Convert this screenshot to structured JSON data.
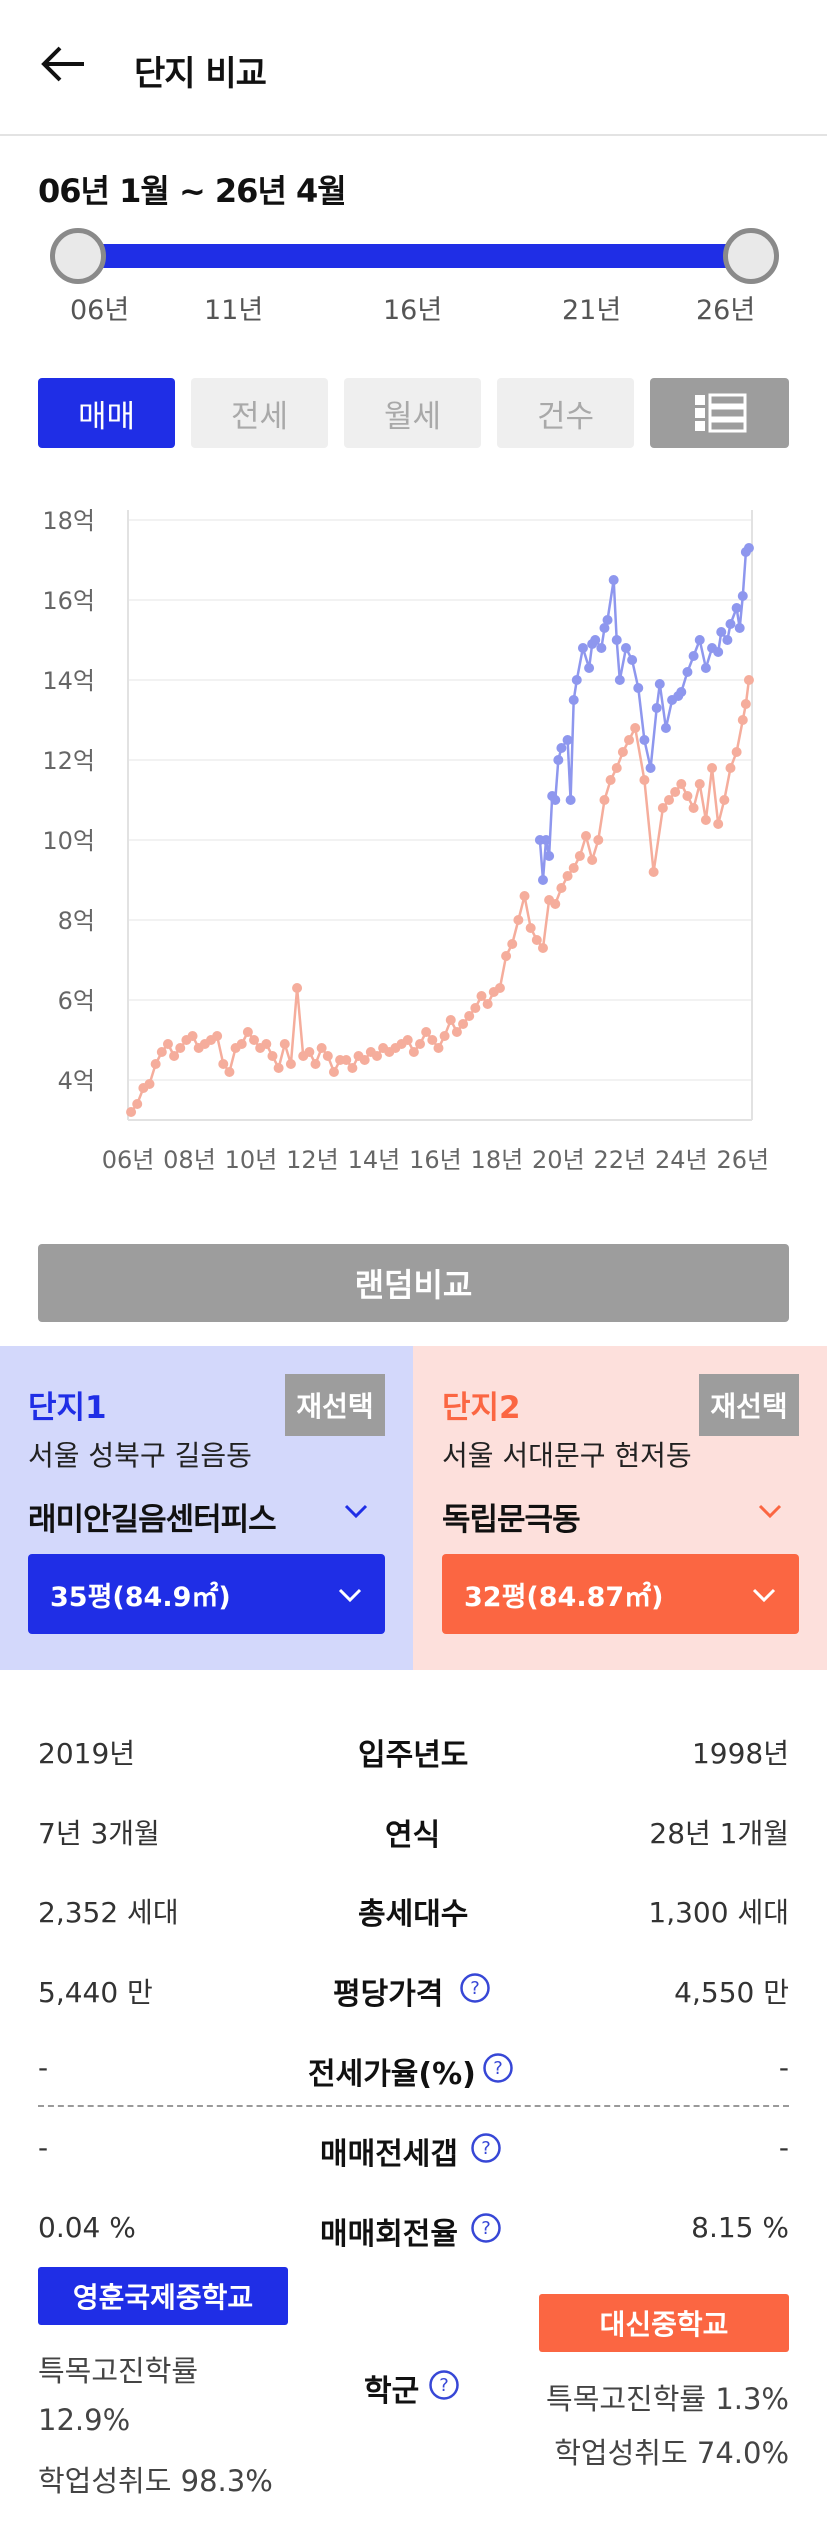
{
  "header": {
    "title": "단지 비교",
    "back_icon": "arrow-left-icon"
  },
  "range": {
    "label": "06년 1월 ~ 26년 4월",
    "ticks": [
      "06년",
      "11년",
      "16년",
      "21년",
      "26년"
    ],
    "start_fraction": 0,
    "end_fraction": 1
  },
  "tabs": [
    {
      "label": "매매",
      "active": true
    },
    {
      "label": "전세",
      "active": false
    },
    {
      "label": "월세",
      "active": false
    },
    {
      "label": "건수",
      "active": false
    }
  ],
  "list_icon": "list-view-icon",
  "colors": {
    "accent": "#1f2ee6",
    "complex1": "#8e97ee",
    "complex2": "#f5ad9c",
    "complex2_accent": "#fb6642"
  },
  "chart_data": {
    "type": "line",
    "x_ticks": [
      "06년",
      "08년",
      "10년",
      "12년",
      "14년",
      "16년",
      "18년",
      "20년",
      "22년",
      "24년",
      "26년"
    ],
    "y_ticks": [
      "4억",
      "6억",
      "8억",
      "10억",
      "12억",
      "14억",
      "16억",
      "18억"
    ],
    "xlim": [
      2006.0,
      2026.3
    ],
    "ylim": [
      3.0,
      18.5
    ],
    "grid": true,
    "series": [
      {
        "color": "#8e97ee",
        "x": [
          2019.4,
          2019.5,
          2019.6,
          2019.7,
          2019.8,
          2019.9,
          2020.0,
          2020.1,
          2020.3,
          2020.4,
          2020.5,
          2020.6,
          2020.8,
          2021.0,
          2021.1,
          2021.2,
          2021.4,
          2021.5,
          2021.6,
          2021.8,
          2021.9,
          2022.0,
          2022.2,
          2022.4,
          2022.6,
          2022.8,
          2023.0,
          2023.2,
          2023.3,
          2023.5,
          2023.7,
          2023.9,
          2024.0,
          2024.2,
          2024.4,
          2024.6,
          2024.8,
          2025.0,
          2025.2,
          2025.3,
          2025.5,
          2025.6,
          2025.8,
          2025.9,
          2026.0,
          2026.1,
          2026.2
        ],
        "y": [
          10.0,
          9.0,
          10.0,
          9.6,
          11.1,
          11.0,
          12.0,
          12.3,
          12.5,
          11.0,
          13.5,
          14.0,
          14.8,
          14.3,
          14.9,
          15.0,
          14.8,
          15.3,
          15.5,
          16.5,
          15.0,
          14.0,
          14.8,
          14.5,
          13.8,
          12.5,
          11.8,
          13.3,
          13.9,
          12.8,
          13.5,
          13.6,
          13.7,
          14.2,
          14.6,
          15.0,
          14.3,
          14.8,
          14.7,
          15.2,
          15.0,
          15.4,
          15.8,
          15.3,
          16.1,
          17.2,
          17.3
        ]
      },
      {
        "color": "#f5ad9c",
        "x": [
          2006.1,
          2006.3,
          2006.5,
          2006.7,
          2006.9,
          2007.1,
          2007.3,
          2007.5,
          2007.7,
          2007.9,
          2008.1,
          2008.3,
          2008.5,
          2008.7,
          2008.9,
          2009.1,
          2009.3,
          2009.5,
          2009.7,
          2009.9,
          2010.1,
          2010.3,
          2010.5,
          2010.7,
          2010.9,
          2011.1,
          2011.3,
          2011.5,
          2011.7,
          2011.9,
          2012.1,
          2012.3,
          2012.5,
          2012.7,
          2012.9,
          2013.1,
          2013.3,
          2013.5,
          2013.7,
          2013.9,
          2014.1,
          2014.3,
          2014.5,
          2014.7,
          2014.9,
          2015.1,
          2015.3,
          2015.5,
          2015.7,
          2015.9,
          2016.1,
          2016.3,
          2016.5,
          2016.7,
          2016.9,
          2017.1,
          2017.3,
          2017.5,
          2017.7,
          2017.9,
          2018.1,
          2018.3,
          2018.5,
          2018.7,
          2018.9,
          2019.1,
          2019.3,
          2019.5,
          2019.7,
          2019.9,
          2020.1,
          2020.3,
          2020.5,
          2020.7,
          2020.9,
          2021.1,
          2021.3,
          2021.5,
          2021.7,
          2021.9,
          2022.1,
          2022.3,
          2022.5,
          2022.8,
          2023.1,
          2023.4,
          2023.6,
          2023.8,
          2024.0,
          2024.2,
          2024.4,
          2024.6,
          2024.8,
          2025.0,
          2025.2,
          2025.4,
          2025.6,
          2025.8,
          2026.0,
          2026.1,
          2026.2
        ],
        "y": [
          3.2,
          3.4,
          3.8,
          3.9,
          4.4,
          4.7,
          4.9,
          4.6,
          4.8,
          5.0,
          5.1,
          4.8,
          4.9,
          5.0,
          5.1,
          4.4,
          4.2,
          4.8,
          4.9,
          5.2,
          5.0,
          4.8,
          4.9,
          4.6,
          4.3,
          4.9,
          4.4,
          6.3,
          4.6,
          4.7,
          4.4,
          4.8,
          4.6,
          4.2,
          4.5,
          4.5,
          4.3,
          4.6,
          4.5,
          4.7,
          4.6,
          4.8,
          4.7,
          4.8,
          4.9,
          5.0,
          4.7,
          4.9,
          5.2,
          5.0,
          4.8,
          5.1,
          5.5,
          5.2,
          5.4,
          5.6,
          5.8,
          6.1,
          5.9,
          6.2,
          6.3,
          7.1,
          7.4,
          8.0,
          8.6,
          7.8,
          7.5,
          7.3,
          8.5,
          8.4,
          8.8,
          9.1,
          9.3,
          9.6,
          10.1,
          9.5,
          10.0,
          11.0,
          11.5,
          11.8,
          12.2,
          12.5,
          12.8,
          11.5,
          9.2,
          10.8,
          11.0,
          11.2,
          11.4,
          11.1,
          10.8,
          11.4,
          10.5,
          11.8,
          10.4,
          11.0,
          11.8,
          12.2,
          13.0,
          13.4,
          14.0
        ]
      }
    ]
  },
  "random_compare_label": "랜덤비교",
  "complex1": {
    "label": "단지1",
    "reselect": "재선택",
    "address": "서울 성북구 길음동",
    "name": "래미안길음센터피스",
    "size": "35평(84.9㎡)"
  },
  "complex2": {
    "label": "단지2",
    "reselect": "재선택",
    "address": "서울 서대문구 현저동",
    "name": "독립문극동",
    "size": "32평(84.87㎡)"
  },
  "rows": [
    {
      "left": "2019년",
      "label": "입주년도",
      "right": "1998년"
    },
    {
      "left": "7년 3개월",
      "label": "연식",
      "right": "28년 1개월"
    },
    {
      "left": "2,352 세대",
      "label": "총세대수",
      "right": "1,300 세대"
    },
    {
      "left": "5,440 만",
      "label": "평당가격",
      "right": "4,550 만"
    },
    {
      "left": "-",
      "label": "전세가율(%)",
      "right": "-"
    },
    {
      "left": "-",
      "label": "매매전세갭",
      "right": "-"
    },
    {
      "left": "0.04 %",
      "label": "매매회전율",
      "right": "8.15 %"
    }
  ],
  "school": {
    "label": "학군",
    "left": {
      "name": "영훈국제중학교",
      "rate_label": "특목고진학률",
      "rate": "12.9%",
      "achievement": "학업성취도 98.3%"
    },
    "right": {
      "name": "대신중학교",
      "rate": "특목고진학률 1.3%",
      "achievement": "학업성취도 74.0%"
    }
  }
}
